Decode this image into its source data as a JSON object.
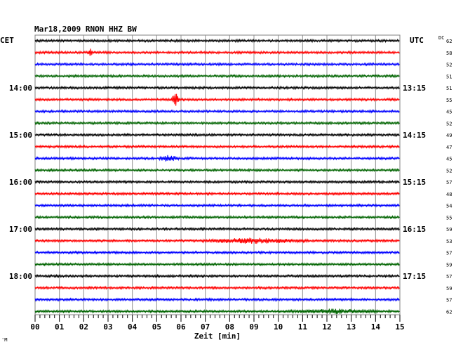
{
  "chart_data": {
    "type": "line",
    "title": "Mar18,2009   RNON HHZ BW",
    "left_timezone": "CET",
    "right_timezone": "UTC",
    "dc_label": "DC",
    "xlabel": "Zeit [min]",
    "xlim": [
      0,
      15
    ],
    "x_ticks": [
      "00",
      "01",
      "02",
      "03",
      "04",
      "05",
      "06",
      "07",
      "08",
      "09",
      "10",
      "11",
      "12",
      "13",
      "14",
      "15"
    ],
    "grid": true,
    "trace_colors": [
      "#000000",
      "#ff0000",
      "#0000ff",
      "#006400"
    ],
    "left_hour_labels": [
      {
        "row": 4,
        "text": "14:00"
      },
      {
        "row": 8,
        "text": "15:00"
      },
      {
        "row": 12,
        "text": "16:00"
      },
      {
        "row": 16,
        "text": "17:00"
      },
      {
        "row": 20,
        "text": "18:00"
      }
    ],
    "right_hour_labels": [
      {
        "row": 4,
        "text": "13:15"
      },
      {
        "row": 8,
        "text": "14:15"
      },
      {
        "row": 12,
        "text": "15:15"
      },
      {
        "row": 16,
        "text": "16:15"
      },
      {
        "row": 20,
        "text": "17:15"
      }
    ],
    "dc_values": [
      "62",
      "58",
      "52",
      "51",
      "51",
      "55",
      "45",
      "52",
      "49",
      "47",
      "45",
      "52",
      "57",
      "48",
      "54",
      "55",
      "59",
      "53",
      "57",
      "59",
      "57",
      "59",
      "57",
      "62"
    ],
    "events": [
      {
        "row": 1,
        "minute": 2.3,
        "amplitude": 5,
        "width": 0.12
      },
      {
        "row": 5,
        "minute": 5.75,
        "amplitude": 11,
        "width": 0.18
      },
      {
        "row": 10,
        "minute": 5.5,
        "amplitude": 4,
        "width": 0.45
      },
      {
        "row": 17,
        "minute": 9.0,
        "amplitude": 3,
        "width": 2.4
      },
      {
        "row": 23,
        "minute": 12.3,
        "amplitude": 2.5,
        "width": 2.0
      }
    ],
    "watermark": "'M"
  }
}
